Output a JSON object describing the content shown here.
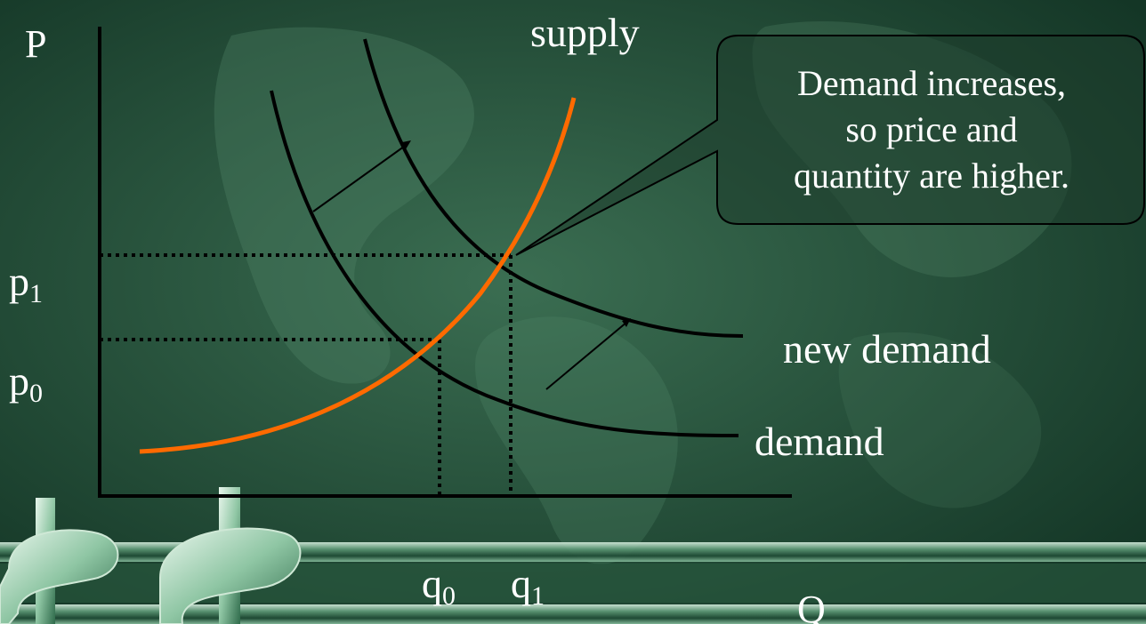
{
  "axes": {
    "y_label": "P",
    "x_label": "Q",
    "p1": {
      "base": "p",
      "sub": "1"
    },
    "p0": {
      "base": "p",
      "sub": "0"
    },
    "q0": {
      "base": "q",
      "sub": "0"
    },
    "q1": {
      "base": "q",
      "sub": "1"
    }
  },
  "curves": {
    "supply": "supply",
    "new_demand": "new demand",
    "demand": "demand"
  },
  "callout": {
    "lines": [
      "Demand increases,",
      "so price and",
      "quantity are higher."
    ]
  },
  "colors": {
    "background": "#1f4a34",
    "supply_curve": "#ff6a00",
    "demand_curve": "#000000",
    "text": "#ffffff"
  },
  "decor": {
    "icons": [
      "dollar-sign-icon",
      "dollar-sign-icon"
    ]
  }
}
